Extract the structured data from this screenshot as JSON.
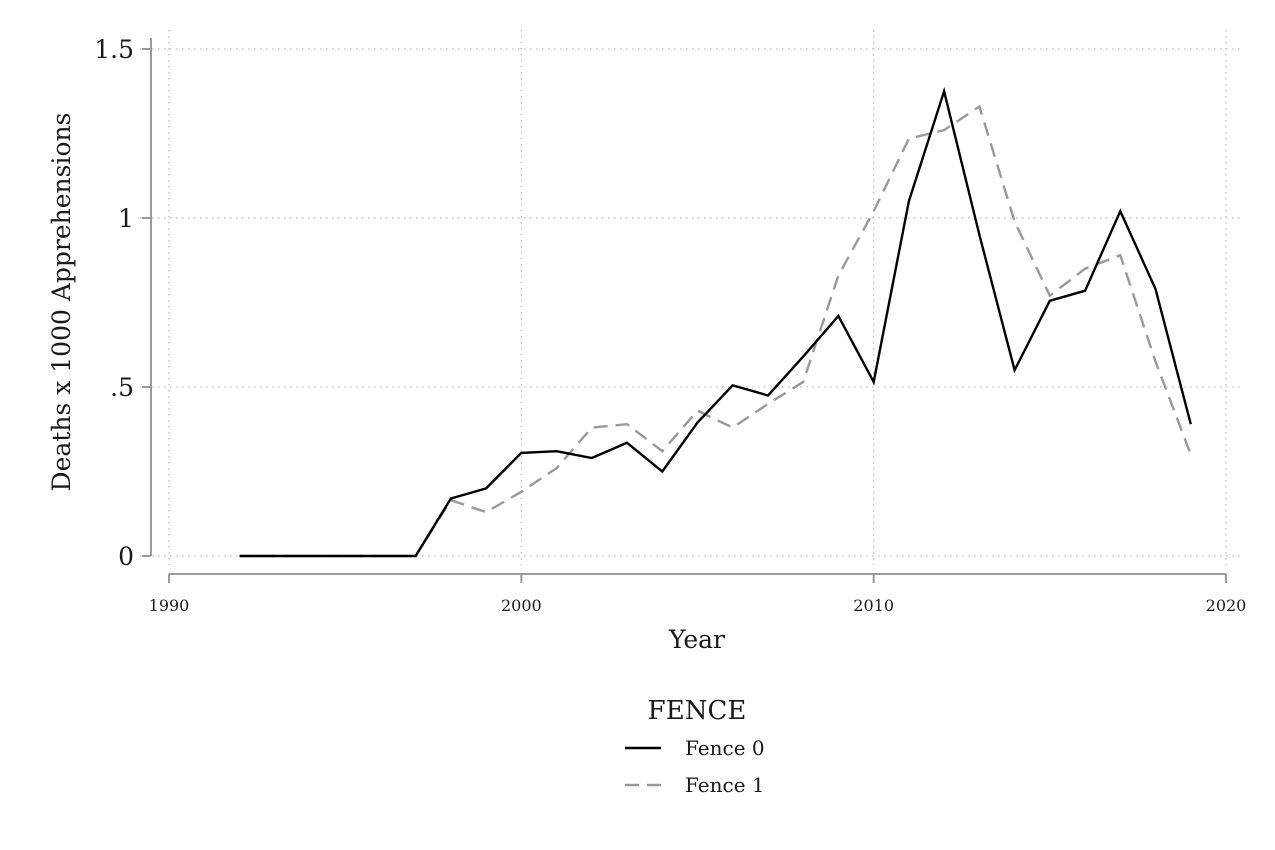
{
  "chart_data": {
    "type": "line",
    "title": "",
    "xlabel": "Year",
    "ylabel": "Deaths x 1000 Apprehensions",
    "xlim": [
      1990,
      2020
    ],
    "ylim": [
      0,
      1.5
    ],
    "x_ticks": [
      1990,
      2000,
      2010,
      2020
    ],
    "x_tick_labels": [
      "1990",
      "2000",
      "2010",
      "2020"
    ],
    "y_ticks": [
      0,
      0.5,
      1,
      1.5
    ],
    "y_tick_labels": [
      "0",
      ".5",
      "1",
      "1.5"
    ],
    "grid": true,
    "legend": {
      "title": "FENCE",
      "position": "bottom"
    },
    "x": [
      1992,
      1993,
      1994,
      1995,
      1996,
      1997,
      1998,
      1999,
      2000,
      2001,
      2002,
      2003,
      2004,
      2005,
      2006,
      2007,
      2008,
      2009,
      2010,
      2011,
      2012,
      2013,
      2014,
      2015,
      2016,
      2017,
      2018,
      2019
    ],
    "series": [
      {
        "name": "Fence 0",
        "color": "#000000",
        "dash": "solid",
        "values": [
          0,
          0,
          0,
          0,
          0,
          0,
          0.17,
          0.2,
          0.305,
          0.31,
          0.29,
          0.335,
          0.25,
          0.395,
          0.505,
          0.475,
          0.59,
          0.71,
          0.515,
          1.05,
          1.375,
          0.95,
          0.55,
          0.755,
          0.785,
          1.02,
          0.79,
          0.39
        ]
      },
      {
        "name": "Fence 1",
        "color": "#999999",
        "dash": "dashed",
        "values": [
          0,
          0,
          0,
          0,
          0,
          0,
          0.165,
          0.13,
          0.19,
          0.26,
          0.38,
          0.39,
          0.31,
          0.43,
          0.38,
          0.45,
          0.515,
          0.83,
          1.02,
          1.235,
          1.26,
          1.33,
          0.99,
          0.77,
          0.85,
          0.89,
          0.575,
          0.3
        ]
      }
    ]
  }
}
